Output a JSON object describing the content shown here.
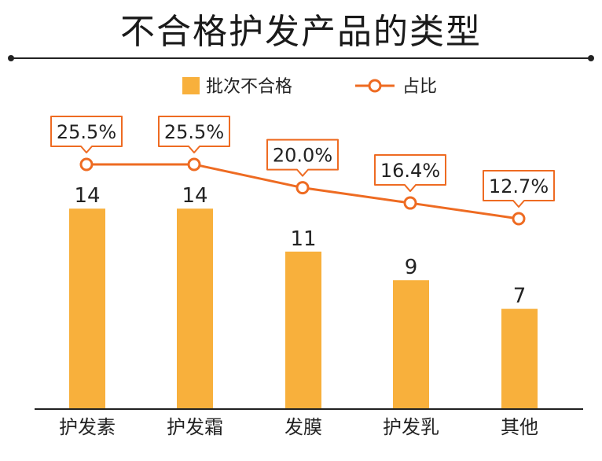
{
  "chart_data": {
    "type": "bar",
    "title": "不合格护发产品的类型",
    "categories": [
      "护发素",
      "护发霜",
      "发膜",
      "护发乳",
      "其他"
    ],
    "series": [
      {
        "name": "批次不合格",
        "type": "bar",
        "values": [
          14,
          14,
          11,
          9,
          7
        ],
        "color": "#F8B03C"
      },
      {
        "name": "占比",
        "type": "line",
        "values": [
          25.5,
          25.5,
          20.0,
          16.4,
          12.7
        ],
        "labels": [
          "25.5%",
          "25.5%",
          "20.0%",
          "16.4%",
          "12.7%"
        ],
        "color": "#EE6B22"
      }
    ],
    "legend_position": "top-center",
    "grid": false
  }
}
